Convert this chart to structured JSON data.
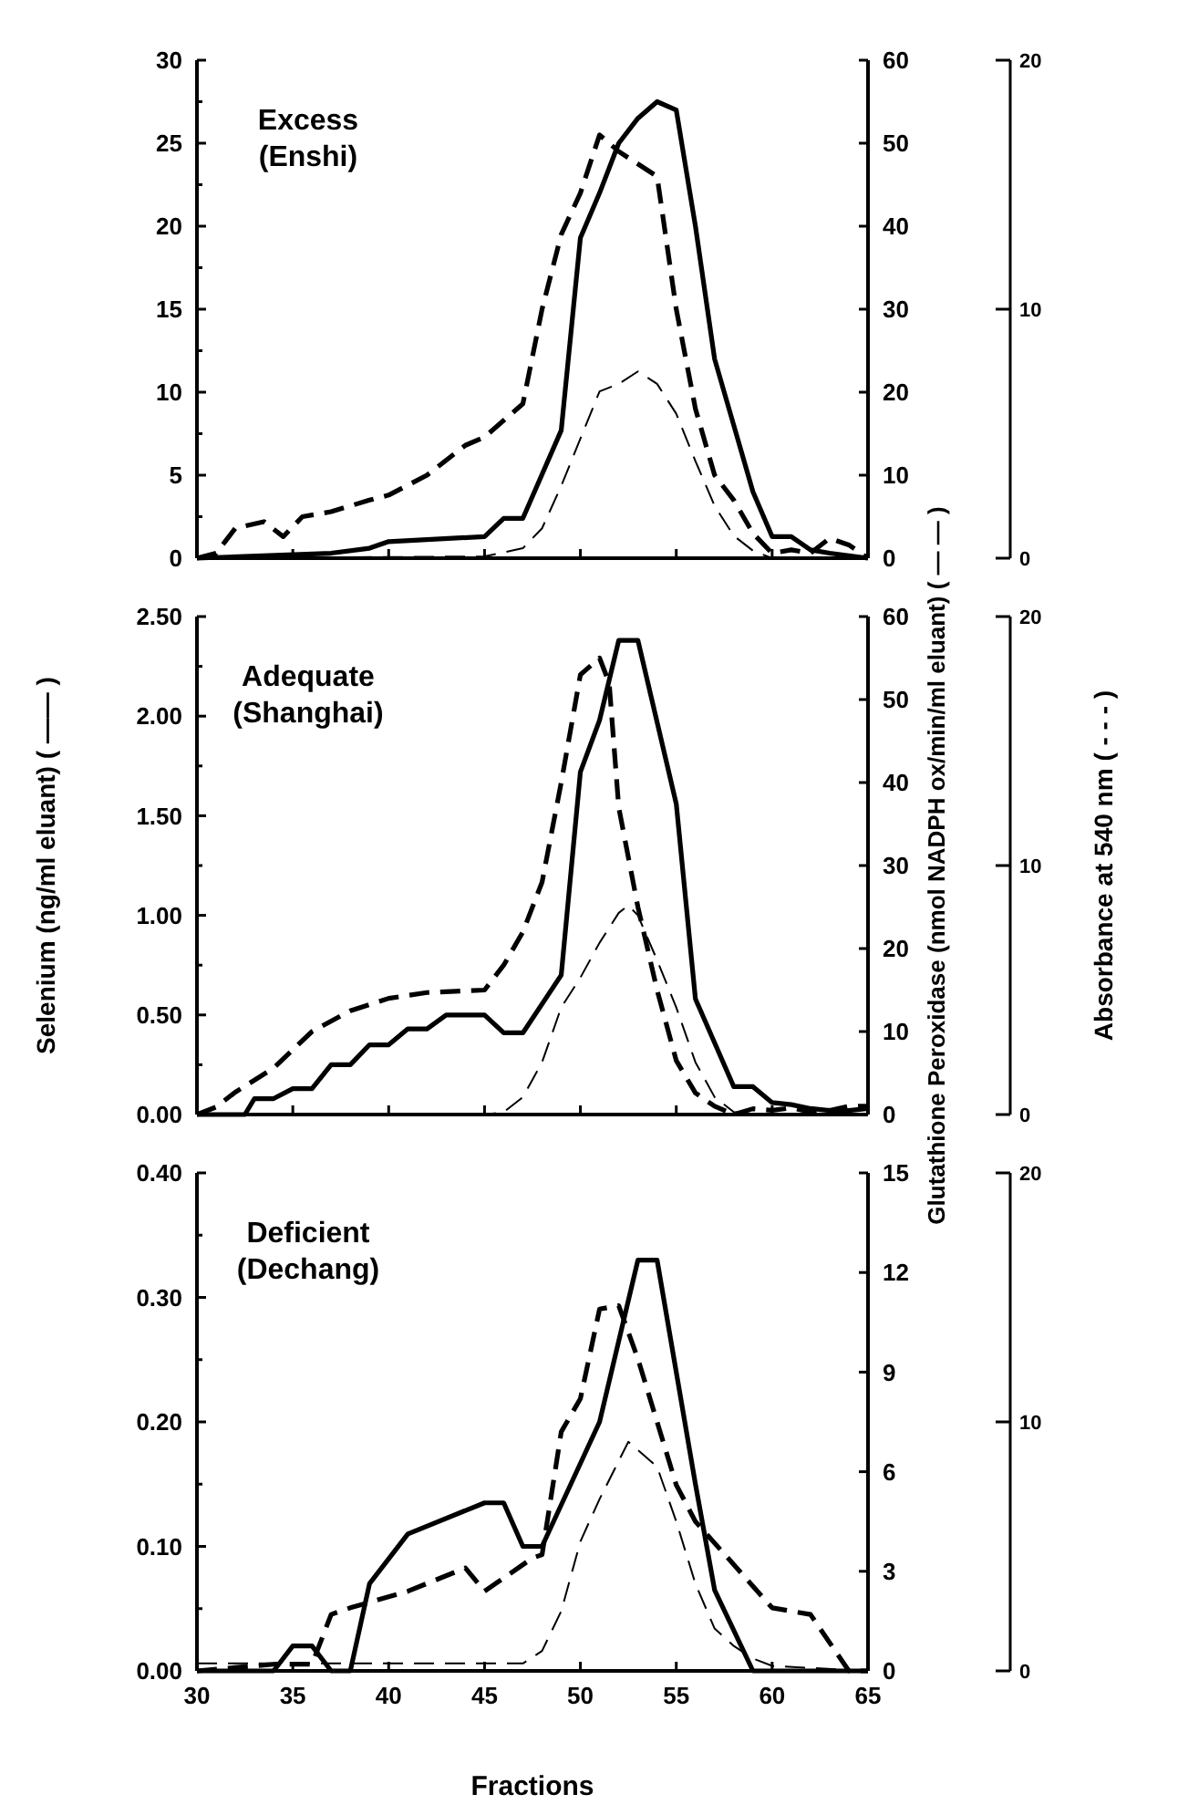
{
  "chart_data": [
    {
      "type": "line",
      "title": "Excess",
      "subtitle": "(Enshi)",
      "tick_labels": "y",
      "xlim": [
        30,
        65
      ],
      "xticks": [
        30,
        35,
        40,
        45,
        50,
        55,
        60,
        65
      ],
      "ylim": [
        0,
        30
      ],
      "yticks": [
        0,
        {
          "value": 2.5,
          "label": null
        },
        5,
        {
          "value": 7.5,
          "label": null
        },
        10,
        {
          "value": 12.5,
          "label": null
        },
        15,
        {
          "value": 17.5,
          "label": null
        },
        20,
        {
          "value": 22.5,
          "label": null
        },
        25,
        {
          "value": 27.5,
          "label": null
        },
        30
      ],
      "y2lim": [
        0,
        60
      ],
      "y2ticks": [
        0,
        10,
        20,
        30,
        40,
        50,
        60
      ],
      "y3lim": [
        0,
        20
      ],
      "y3ticks": [
        0,
        10,
        20
      ],
      "series": [
        {
          "color": "#000000",
          "line_style": "solid",
          "x": [
            30,
            37,
            39,
            40,
            45,
            46,
            47,
            49,
            50,
            51,
            52,
            53,
            54,
            55,
            56,
            57,
            58,
            59,
            60,
            61,
            62,
            63,
            65
          ],
          "values": [
            0,
            0.3,
            0.6,
            1.0,
            1.3,
            2.4,
            2.4,
            7.7,
            19.3,
            22,
            25,
            26.5,
            27.5,
            27,
            20,
            12,
            8,
            4,
            1.3,
            1.3,
            0.5,
            0.3,
            0
          ]
        },
        {
          "color": "#000000",
          "line_style": "dashed",
          "axis": "y2",
          "x": [
            30,
            31,
            32,
            33.5,
            34.5,
            35.5,
            37,
            39,
            40,
            42,
            44,
            45,
            47,
            48,
            49,
            50,
            51,
            52,
            54,
            55,
            56,
            57,
            58,
            59,
            60,
            61,
            62,
            63,
            64,
            65
          ],
          "values": [
            0,
            0.6,
            3.6,
            4.4,
            2.6,
            5,
            5.6,
            7,
            7.6,
            10,
            13.6,
            14.6,
            18.6,
            30,
            39,
            44,
            51,
            49,
            46,
            30,
            18,
            10,
            7,
            3,
            0.6,
            1,
            0.6,
            2.4,
            1.6,
            0
          ]
        },
        {
          "color": "#000000",
          "line_style": "dashed",
          "axis": "y3",
          "x": [
            30,
            45,
            47,
            48,
            49,
            50,
            51,
            52,
            53,
            54,
            55,
            56,
            57,
            58,
            59,
            60,
            65
          ],
          "values": [
            0,
            0.07,
            0.4,
            1.2,
            2.9,
            4.8,
            6.7,
            7,
            7.5,
            7,
            5.8,
            3.9,
            2.1,
            0.9,
            0.3,
            0,
            0
          ]
        }
      ]
    },
    {
      "type": "line",
      "title": "Adequate",
      "subtitle": "(Shanghai)",
      "tick_labels": "y",
      "ylabel": "Selenium (ng/ml eluant) ( —— )",
      "y2label": "Glutathione Peroxidase (nmol NADPH ox/min/ml eluant) ( — — )",
      "y3label": "Absorbance at 540 nm ( - - - )",
      "xlim": [
        30,
        65
      ],
      "xticks": [
        30,
        35,
        40,
        45,
        50,
        55,
        60,
        65
      ],
      "ylim": [
        0,
        2.5
      ],
      "yticks": [
        {
          "value": 0,
          "label": "0.00"
        },
        {
          "value": 0.25,
          "label": null
        },
        {
          "value": 0.5,
          "label": "0.50"
        },
        {
          "value": 0.75,
          "label": null
        },
        {
          "value": 1,
          "label": "1.00"
        },
        {
          "value": 1.25,
          "label": null
        },
        {
          "value": 1.5,
          "label": "1.50"
        },
        {
          "value": 1.75,
          "label": null
        },
        {
          "value": 2,
          "label": "2.00"
        },
        {
          "value": 2.25,
          "label": null
        },
        {
          "value": 2.5,
          "label": "2.50"
        }
      ],
      "y2lim": [
        0,
        60
      ],
      "y2ticks": [
        0,
        10,
        20,
        30,
        40,
        50,
        60
      ],
      "y3lim": [
        0,
        20
      ],
      "y3ticks": [
        0,
        10,
        20
      ],
      "series": [
        {
          "color": "#000000",
          "line_style": "solid",
          "x": [
            30,
            32.5,
            33,
            34,
            35,
            36,
            37,
            38,
            39,
            40,
            41,
            42,
            43,
            45,
            46,
            47,
            49,
            50,
            51,
            52,
            53,
            55,
            56,
            58,
            59,
            60,
            61,
            62,
            63,
            64,
            65
          ],
          "values": [
            0,
            0,
            0.08,
            0.08,
            0.13,
            0.13,
            0.25,
            0.25,
            0.35,
            0.35,
            0.43,
            0.43,
            0.5,
            0.5,
            0.41,
            0.41,
            0.7,
            1.72,
            1.98,
            2.38,
            2.38,
            1.56,
            0.58,
            0.14,
            0.14,
            0.06,
            0.05,
            0.03,
            0.02,
            0.02,
            0.03
          ]
        },
        {
          "color": "#000000",
          "line_style": "dashed",
          "axis": "y2",
          "x": [
            30,
            31,
            32,
            34,
            36,
            38,
            40,
            42,
            45,
            46,
            47,
            48,
            49,
            50,
            51,
            51.5,
            52,
            53,
            54,
            55,
            56,
            57,
            58,
            59,
            60,
            61,
            62,
            63,
            64,
            65
          ],
          "values": [
            0,
            0.9,
            2.7,
            5.6,
            10,
            12.5,
            14,
            14.7,
            15,
            18,
            22,
            28,
            40,
            53,
            55,
            52,
            37,
            25,
            15,
            6.5,
            2.6,
            1,
            0,
            0.7,
            0.5,
            0.8,
            0.3,
            0.5,
            1,
            1
          ]
        },
        {
          "color": "#000000",
          "line_style": "dashed",
          "axis": "y3",
          "x": [
            30,
            45,
            46,
            47,
            48,
            49,
            50,
            51,
            52,
            52.5,
            53,
            54,
            55,
            56,
            57,
            58,
            59,
            65
          ],
          "values": [
            0,
            0,
            0.1,
            0.7,
            2.1,
            4.3,
            5.5,
            6.9,
            8.1,
            8.4,
            8,
            6.2,
            4.3,
            2.1,
            0.7,
            0.1,
            0,
            0
          ]
        }
      ]
    },
    {
      "type": "line",
      "title": "Deficient",
      "subtitle": "(Dechang)",
      "xlabel": "Fractions",
      "xlim": [
        30,
        65
      ],
      "xticks": [
        30,
        35,
        40,
        45,
        50,
        55,
        60,
        65
      ],
      "ylim": [
        0,
        0.4
      ],
      "yticks": [
        {
          "value": 0,
          "label": "0.00"
        },
        {
          "value": 0.05,
          "label": null
        },
        {
          "value": 0.1,
          "label": "0.10"
        },
        {
          "value": 0.15,
          "label": null
        },
        {
          "value": 0.2,
          "label": "0.20"
        },
        {
          "value": 0.25,
          "label": null
        },
        {
          "value": 0.3,
          "label": "0.30"
        },
        {
          "value": 0.35,
          "label": null
        },
        {
          "value": 0.4,
          "label": "0.40"
        }
      ],
      "y2lim": [
        0,
        15
      ],
      "y2ticks": [
        0,
        3,
        6,
        9,
        12,
        15
      ],
      "y3lim": [
        0,
        20
      ],
      "y3ticks": [
        0,
        10,
        20
      ],
      "series": [
        {
          "color": "#000000",
          "line_style": "solid",
          "x": [
            30,
            34,
            35,
            36,
            37,
            38,
            39,
            41,
            45,
            46,
            47,
            48,
            51,
            53,
            54,
            56,
            57,
            59,
            65
          ],
          "values": [
            0,
            0,
            0.02,
            0.02,
            0,
            0,
            0.07,
            0.11,
            0.135,
            0.135,
            0.1,
            0.1,
            0.2,
            0.33,
            0.33,
            0.15,
            0.065,
            0,
            0
          ]
        },
        {
          "color": "#000000",
          "line_style": "dashed",
          "axis": "y2",
          "x": [
            30,
            34,
            36,
            37,
            38,
            41,
            44,
            45,
            47.5,
            48,
            49,
            50,
            51,
            52,
            53,
            54,
            55,
            56,
            58,
            60,
            62,
            64,
            65
          ],
          "values": [
            0,
            0.2,
            0.2,
            1.7,
            1.9,
            2.4,
            3.1,
            2.4,
            3.4,
            3.5,
            7.2,
            8.2,
            10.9,
            11,
            9.4,
            7.5,
            5.6,
            4.5,
            3.2,
            1.9,
            1.7,
            0,
            0
          ]
        },
        {
          "color": "#000000",
          "line_style": "dashed",
          "axis": "y3",
          "x": [
            30,
            47,
            48,
            49,
            50,
            51,
            52.5,
            54,
            55,
            56,
            57,
            58,
            59,
            60,
            65
          ],
          "values": [
            0.3,
            0.3,
            0.8,
            2.4,
            5.2,
            6.9,
            9.2,
            8.2,
            6,
            3.5,
            1.7,
            1,
            0.5,
            0.2,
            0
          ]
        }
      ]
    }
  ]
}
